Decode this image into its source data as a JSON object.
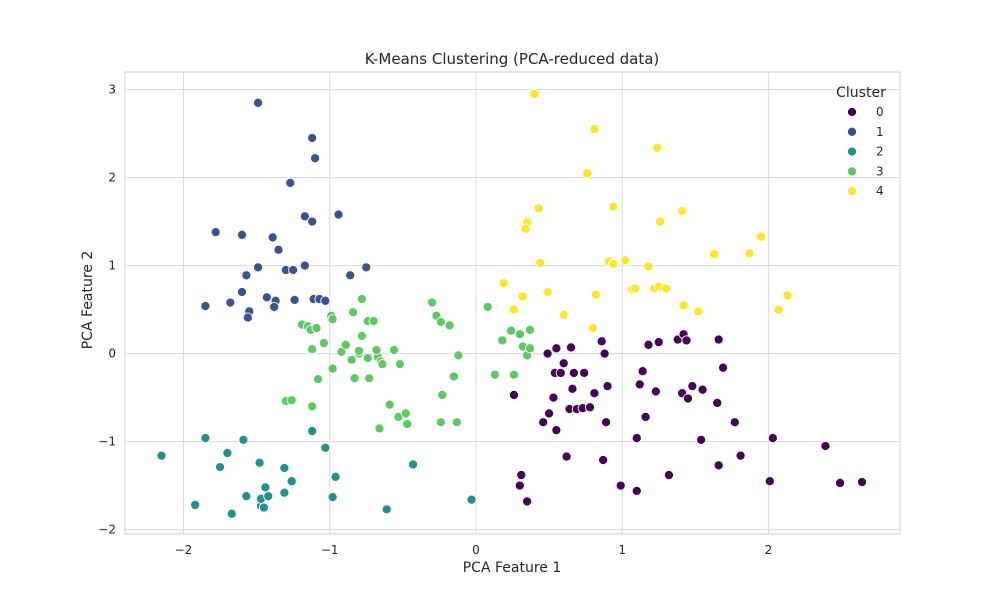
{
  "chart_data": {
    "type": "scatter",
    "title": "K-Means Clustering (PCA-reduced data)",
    "xlabel": "PCA Feature 1",
    "ylabel": "PCA Feature 2",
    "xlim": [
      -2.4,
      2.9
    ],
    "ylim": [
      -2.05,
      3.2
    ],
    "xticks": [
      -2,
      -1,
      0,
      1,
      2
    ],
    "yticks": [
      -2,
      -1,
      0,
      1,
      2,
      3
    ],
    "grid": true,
    "legend": {
      "title": "Cluster",
      "position": "top-right"
    },
    "series": [
      {
        "name": "0",
        "color": "#440154",
        "points": [
          [
            0.31,
            -1.38
          ],
          [
            0.3,
            -1.5
          ],
          [
            0.35,
            -1.68
          ],
          [
            0.26,
            -0.47
          ],
          [
            0.46,
            -0.78
          ],
          [
            0.5,
            -0.68
          ],
          [
            0.55,
            -0.87
          ],
          [
            0.53,
            -0.5
          ],
          [
            0.66,
            -0.4
          ],
          [
            0.64,
            -0.63
          ],
          [
            0.54,
            -0.22
          ],
          [
            0.58,
            -0.22
          ],
          [
            0.49,
            0.0
          ],
          [
            0.55,
            0.06
          ],
          [
            0.6,
            -0.11
          ],
          [
            0.65,
            0.07
          ],
          [
            0.69,
            -0.63
          ],
          [
            0.73,
            -0.62
          ],
          [
            0.78,
            -0.61
          ],
          [
            0.67,
            -0.22
          ],
          [
            0.74,
            -0.22
          ],
          [
            0.81,
            -0.45
          ],
          [
            0.86,
            0.14
          ],
          [
            0.88,
            0.0
          ],
          [
            0.9,
            -0.37
          ],
          [
            0.89,
            -0.78
          ],
          [
            0.87,
            -1.21
          ],
          [
            0.62,
            -1.17
          ],
          [
            0.99,
            -1.5
          ],
          [
            1.1,
            -1.56
          ],
          [
            1.14,
            -0.2
          ],
          [
            1.12,
            -0.35
          ],
          [
            1.16,
            -0.72
          ],
          [
            1.1,
            -0.96
          ],
          [
            1.18,
            0.1
          ],
          [
            1.23,
            -0.43
          ],
          [
            1.25,
            0.13
          ],
          [
            1.32,
            -1.38
          ],
          [
            1.38,
            0.16
          ],
          [
            1.42,
            0.22
          ],
          [
            1.44,
            0.15
          ],
          [
            1.41,
            -0.45
          ],
          [
            1.45,
            -0.51
          ],
          [
            1.48,
            -0.37
          ],
          [
            1.55,
            -0.41
          ],
          [
            1.54,
            -0.98
          ],
          [
            1.65,
            -0.56
          ],
          [
            1.66,
            0.16
          ],
          [
            1.66,
            -1.27
          ],
          [
            1.69,
            -0.16
          ],
          [
            1.77,
            -0.78
          ],
          [
            1.81,
            -1.16
          ],
          [
            2.03,
            -0.96
          ],
          [
            2.01,
            -1.45
          ],
          [
            2.39,
            -1.05
          ],
          [
            2.49,
            -1.47
          ],
          [
            2.64,
            -1.46
          ]
        ]
      },
      {
        "name": "1",
        "color": "#3b528b",
        "points": [
          [
            -1.49,
            2.85
          ],
          [
            -1.12,
            2.45
          ],
          [
            -1.1,
            2.22
          ],
          [
            -1.27,
            1.94
          ],
          [
            -1.17,
            1.56
          ],
          [
            -1.12,
            1.5
          ],
          [
            -0.94,
            1.58
          ],
          [
            -1.78,
            1.38
          ],
          [
            -1.6,
            1.35
          ],
          [
            -1.39,
            1.32
          ],
          [
            -1.35,
            1.18
          ],
          [
            -1.49,
            0.98
          ],
          [
            -1.3,
            0.95
          ],
          [
            -1.25,
            0.95
          ],
          [
            -1.57,
            0.89
          ],
          [
            -1.17,
            1.0
          ],
          [
            -0.86,
            0.89
          ],
          [
            -0.75,
            0.98
          ],
          [
            -1.85,
            0.54
          ],
          [
            -1.68,
            0.58
          ],
          [
            -1.6,
            0.7
          ],
          [
            -1.55,
            0.48
          ],
          [
            -1.56,
            0.41
          ],
          [
            -1.43,
            0.64
          ],
          [
            -1.37,
            0.6
          ],
          [
            -1.38,
            0.53
          ],
          [
            -1.24,
            0.61
          ],
          [
            -1.11,
            0.62
          ],
          [
            -1.07,
            0.62
          ],
          [
            -1.03,
            0.6
          ]
        ]
      },
      {
        "name": "2",
        "color": "#21918c",
        "points": [
          [
            -2.15,
            -1.16
          ],
          [
            -1.85,
            -0.96
          ],
          [
            -1.92,
            -1.72
          ],
          [
            -1.75,
            -1.29
          ],
          [
            -1.7,
            -1.13
          ],
          [
            -1.67,
            -1.82
          ],
          [
            -1.59,
            -0.98
          ],
          [
            -1.57,
            -1.62
          ],
          [
            -1.48,
            -1.24
          ],
          [
            -1.47,
            -1.73
          ],
          [
            -1.47,
            -1.65
          ],
          [
            -1.45,
            -1.75
          ],
          [
            -1.44,
            -1.52
          ],
          [
            -1.42,
            -1.62
          ],
          [
            -1.31,
            -1.3
          ],
          [
            -1.31,
            -1.58
          ],
          [
            -1.26,
            -1.45
          ],
          [
            -1.12,
            -0.88
          ],
          [
            -1.03,
            -1.07
          ],
          [
            -0.98,
            -1.63
          ],
          [
            -0.96,
            -1.4
          ],
          [
            -0.61,
            -1.77
          ],
          [
            -0.43,
            -1.26
          ],
          [
            -0.03,
            -1.66
          ]
        ]
      },
      {
        "name": "3",
        "color": "#5ec962",
        "points": [
          [
            -1.19,
            0.33
          ],
          [
            -1.15,
            0.31
          ],
          [
            -1.13,
            0.27
          ],
          [
            -1.09,
            0.29
          ],
          [
            -1.12,
            0.05
          ],
          [
            -1.12,
            -0.6
          ],
          [
            -1.08,
            -0.29
          ],
          [
            -1.04,
            0.12
          ],
          [
            -0.99,
            0.43
          ],
          [
            -0.98,
            0.39
          ],
          [
            -0.98,
            -0.17
          ],
          [
            -0.92,
            0.02
          ],
          [
            -0.89,
            0.1
          ],
          [
            -0.85,
            -0.07
          ],
          [
            -0.84,
            0.47
          ],
          [
            -0.83,
            -0.28
          ],
          [
            -0.8,
            0.0
          ],
          [
            -0.8,
            0.03
          ],
          [
            -0.78,
            0.62
          ],
          [
            -0.78,
            0.2
          ],
          [
            -0.74,
            0.37
          ],
          [
            -0.7,
            0.37
          ],
          [
            -0.73,
            -0.28
          ],
          [
            -0.74,
            -0.05
          ],
          [
            -0.67,
            -0.04
          ],
          [
            -0.68,
            0.04
          ],
          [
            -0.65,
            -0.09
          ],
          [
            -0.64,
            -0.12
          ],
          [
            -0.59,
            -0.58
          ],
          [
            -0.56,
            0.04
          ],
          [
            -0.52,
            -0.12
          ],
          [
            -0.53,
            -0.72
          ],
          [
            -0.48,
            -0.68
          ],
          [
            -0.47,
            -0.8
          ],
          [
            -0.66,
            -0.85
          ],
          [
            -0.3,
            0.58
          ],
          [
            -0.27,
            0.43
          ],
          [
            -0.24,
            0.36
          ],
          [
            -0.18,
            0.32
          ],
          [
            -0.23,
            -0.47
          ],
          [
            -0.24,
            -0.78
          ],
          [
            -0.15,
            -0.26
          ],
          [
            -0.12,
            -0.02
          ],
          [
            -0.13,
            -0.78
          ],
          [
            -1.3,
            -0.54
          ],
          [
            -1.26,
            -0.53
          ],
          [
            0.08,
            0.53
          ],
          [
            0.13,
            -0.24
          ],
          [
            0.18,
            0.15
          ],
          [
            0.24,
            0.26
          ],
          [
            0.26,
            -0.24
          ],
          [
            0.3,
            0.22
          ],
          [
            0.32,
            0.08
          ],
          [
            0.35,
            -0.02
          ],
          [
            0.37,
            0.06
          ],
          [
            0.37,
            0.27
          ]
        ]
      },
      {
        "name": "4",
        "color": "#fde725",
        "points": [
          [
            0.4,
            2.95
          ],
          [
            0.81,
            2.55
          ],
          [
            1.24,
            2.34
          ],
          [
            0.76,
            2.05
          ],
          [
            0.43,
            1.65
          ],
          [
            0.94,
            1.67
          ],
          [
            0.35,
            1.49
          ],
          [
            0.34,
            1.42
          ],
          [
            1.26,
            1.5
          ],
          [
            1.41,
            1.62
          ],
          [
            0.44,
            1.03
          ],
          [
            0.91,
            1.05
          ],
          [
            0.94,
            1.02
          ],
          [
            1.02,
            1.06
          ],
          [
            1.18,
            0.99
          ],
          [
            0.19,
            0.8
          ],
          [
            0.32,
            0.65
          ],
          [
            0.49,
            0.7
          ],
          [
            0.6,
            0.44
          ],
          [
            0.82,
            0.67
          ],
          [
            1.06,
            0.73
          ],
          [
            1.07,
            0.73
          ],
          [
            1.09,
            0.74
          ],
          [
            1.22,
            0.74
          ],
          [
            1.25,
            0.76
          ],
          [
            1.3,
            0.74
          ],
          [
            1.42,
            0.55
          ],
          [
            1.52,
            0.48
          ],
          [
            0.26,
            0.5
          ],
          [
            0.8,
            0.29
          ],
          [
            1.63,
            1.13
          ],
          [
            1.87,
            1.14
          ],
          [
            1.95,
            1.33
          ],
          [
            2.07,
            0.5
          ],
          [
            2.13,
            0.66
          ]
        ]
      }
    ]
  }
}
